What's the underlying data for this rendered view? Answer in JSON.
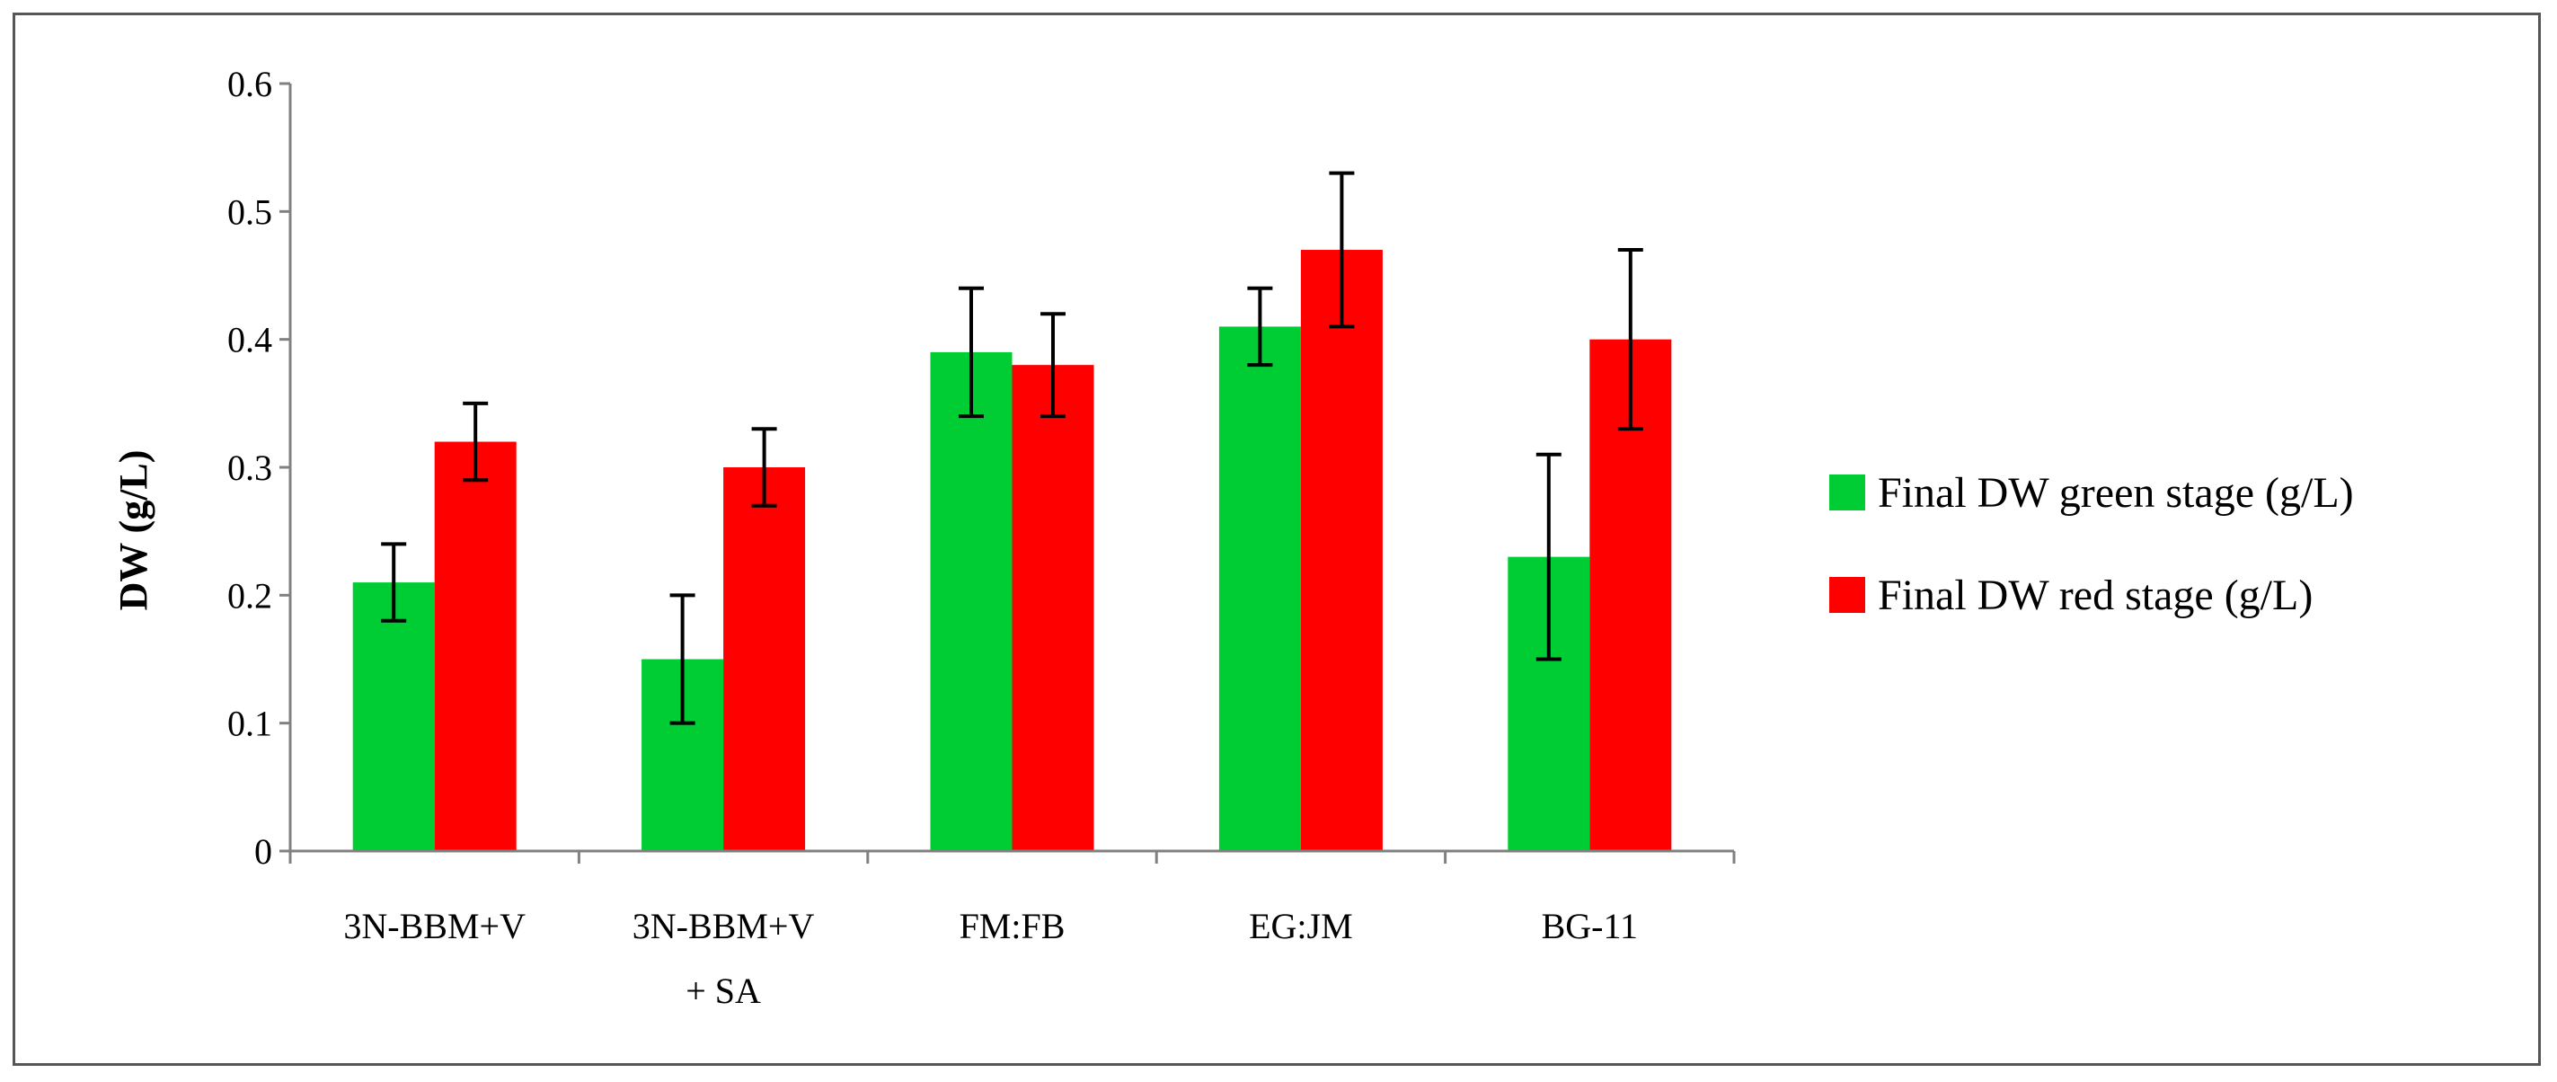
{
  "chart_data": {
    "type": "bar",
    "title": "",
    "xlabel": "",
    "ylabel": "DW (g/L)",
    "ylim": [
      0,
      0.6
    ],
    "yticks": [
      "0",
      "0.1",
      "0.2",
      "0.3",
      "0.4",
      "0.5",
      "0.6"
    ],
    "grid": false,
    "legend_position": "right",
    "categories": [
      [
        "3N-BBM+V"
      ],
      [
        "3N-BBM+V",
        "+ SA"
      ],
      [
        "FM:FB"
      ],
      [
        "EG:JM"
      ],
      [
        "BG-11"
      ]
    ],
    "series": [
      {
        "name": "Final DW green stage (g/L)",
        "color": "#00cc33",
        "values": [
          0.21,
          0.15,
          0.39,
          0.41,
          0.23
        ],
        "error_low": [
          0.18,
          0.1,
          0.34,
          0.38,
          0.15
        ],
        "error_high": [
          0.24,
          0.2,
          0.44,
          0.44,
          0.31
        ]
      },
      {
        "name": "Final DW red stage (g/L)",
        "color": "#ff0000",
        "values": [
          0.32,
          0.3,
          0.38,
          0.47,
          0.4
        ],
        "error_low": [
          0.29,
          0.27,
          0.34,
          0.41,
          0.33
        ],
        "error_high": [
          0.35,
          0.33,
          0.42,
          0.53,
          0.47
        ]
      }
    ]
  }
}
